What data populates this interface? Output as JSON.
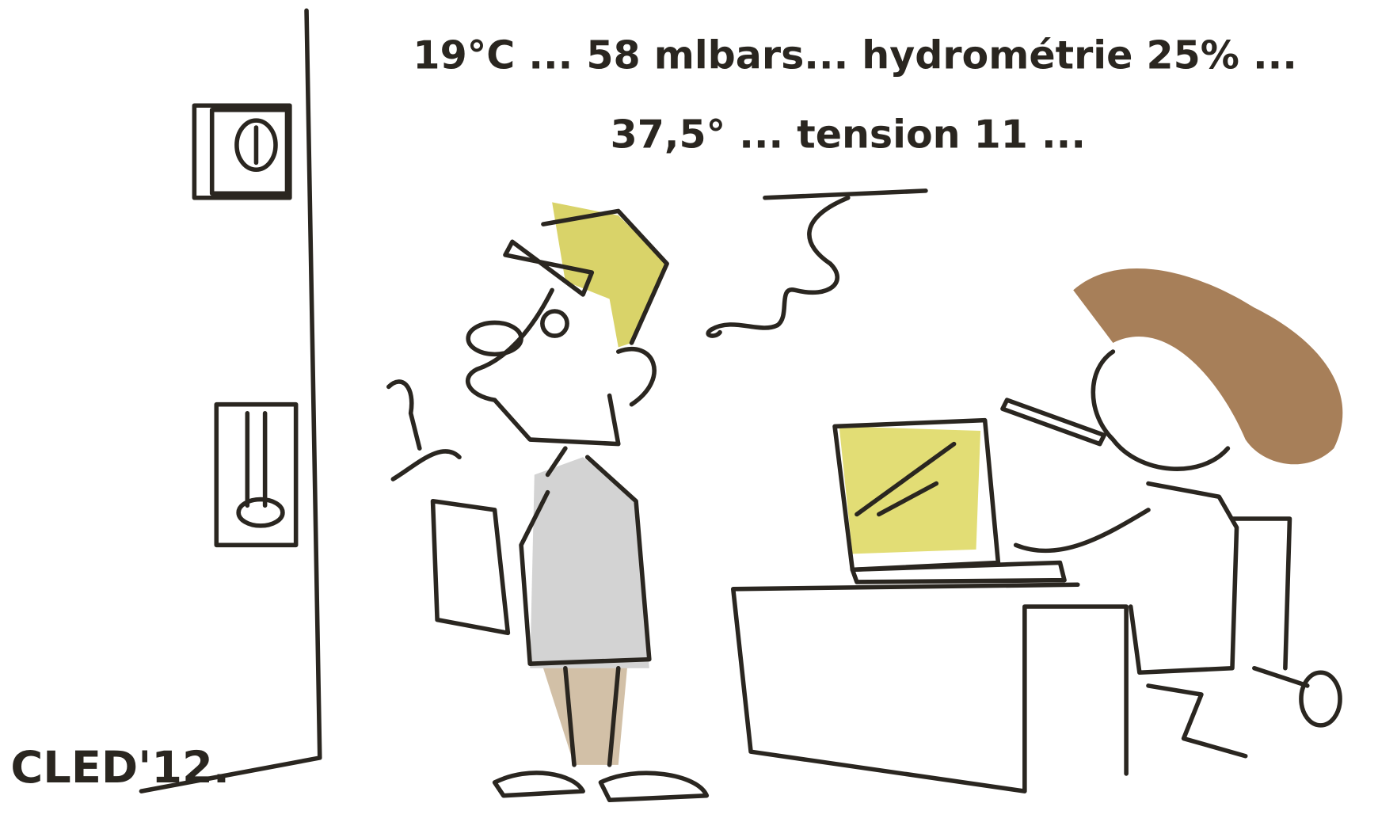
{
  "speech": {
    "line1": "19°C ... 58 mlbars... hydrométrie 25% ...",
    "line2": "37,5° ... tension 11 ..."
  },
  "signature": "CLED'12."
}
